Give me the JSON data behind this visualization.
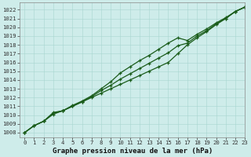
{
  "xlabel": "Graphe pression niveau de la mer (hPa)",
  "xlim": [
    -0.5,
    23
  ],
  "ylim": [
    1007.5,
    1022.8
  ],
  "yticks": [
    1008,
    1009,
    1010,
    1011,
    1012,
    1013,
    1014,
    1015,
    1016,
    1017,
    1018,
    1019,
    1020,
    1021,
    1022
  ],
  "xticks": [
    0,
    1,
    2,
    3,
    4,
    5,
    6,
    7,
    8,
    9,
    10,
    11,
    12,
    13,
    14,
    15,
    16,
    17,
    18,
    19,
    20,
    21,
    22,
    23
  ],
  "background_color": "#ceecea",
  "grid_color": "#a8d5d0",
  "line_color": "#1a5c1a",
  "line1_x": [
    0,
    1,
    2,
    3,
    4,
    5,
    6,
    7,
    8,
    9,
    10,
    11,
    12,
    13,
    14,
    15,
    16,
    17,
    18,
    19,
    20,
    21,
    22,
    23
  ],
  "line1_y": [
    1008.0,
    1008.8,
    1009.3,
    1010.1,
    1010.5,
    1011.0,
    1011.5,
    1012.0,
    1012.5,
    1013.0,
    1013.5,
    1014.0,
    1014.5,
    1015.0,
    1015.5,
    1016.0,
    1017.0,
    1018.0,
    1018.8,
    1019.5,
    1020.3,
    1021.0,
    1021.8,
    1022.3
  ],
  "line2_x": [
    0,
    1,
    2,
    3,
    4,
    5,
    6,
    7,
    8,
    9,
    10,
    11,
    12,
    13,
    14,
    15,
    16,
    17,
    18,
    19,
    20,
    21,
    22,
    23
  ],
  "line2_y": [
    1008.0,
    1008.8,
    1009.3,
    1010.3,
    1010.5,
    1011.1,
    1011.6,
    1012.2,
    1013.0,
    1013.8,
    1014.8,
    1015.5,
    1016.2,
    1016.8,
    1017.5,
    1018.2,
    1018.8,
    1018.5,
    1019.2,
    1019.8,
    1020.5,
    1021.1,
    1021.8,
    1022.3
  ],
  "line3_x": [
    0,
    1,
    2,
    3,
    4,
    5,
    6,
    7,
    8,
    9,
    10,
    11,
    12,
    13,
    14,
    15,
    16,
    17,
    18,
    19,
    20,
    21,
    22,
    23
  ],
  "line3_y": [
    1008.0,
    1008.8,
    1009.3,
    1010.2,
    1010.5,
    1011.0,
    1011.5,
    1012.1,
    1012.8,
    1013.4,
    1014.1,
    1014.7,
    1015.3,
    1015.9,
    1016.5,
    1017.1,
    1017.9,
    1018.2,
    1019.0,
    1019.6,
    1020.4,
    1021.0,
    1021.8,
    1022.3
  ],
  "marker": "+",
  "markersize": 3.5,
  "linewidth": 0.9,
  "tick_fontsize": 5.2,
  "xlabel_fontsize": 6.5
}
